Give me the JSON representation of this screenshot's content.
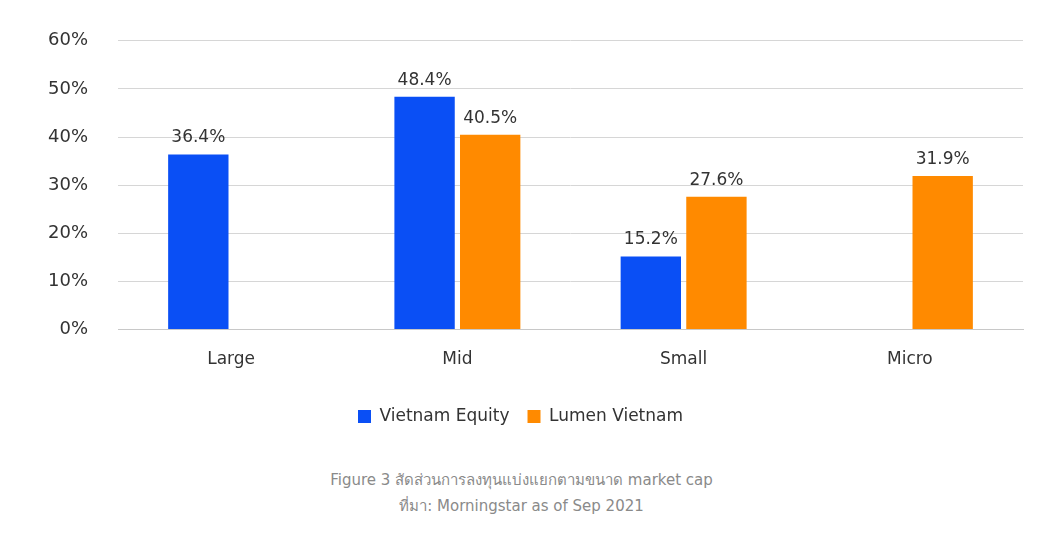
{
  "chart_data": {
    "type": "bar",
    "title": "Figure 3 สัดส่วนการลงทุนแบ่งแยกตามขนาด market cap",
    "subtitle": "ที่มา: Morningstar as of Sep 2021",
    "categories": [
      "Large",
      "Mid",
      "Small",
      "Micro"
    ],
    "series": [
      {
        "name": "Vietnam Equity",
        "color": "#0a4ff5",
        "values": [
          36.4,
          48.4,
          15.2,
          null
        ],
        "value_labels": [
          "36.4%",
          "48.4%",
          "15.2%",
          null
        ]
      },
      {
        "name": "Lumen Vietnam",
        "color": "#ff8a00",
        "values": [
          null,
          40.5,
          27.6,
          31.9
        ],
        "value_labels": [
          null,
          "40.5%",
          "27.6%",
          "31.9%"
        ]
      }
    ],
    "ylim": [
      0,
      60
    ],
    "yticks": [
      {
        "value": 0,
        "label": "0%"
      },
      {
        "value": 10,
        "label": "10%"
      },
      {
        "value": 20,
        "label": "20%"
      },
      {
        "value": 30,
        "label": "30%"
      },
      {
        "value": 40,
        "label": "40%"
      },
      {
        "value": 50,
        "label": "50%"
      },
      {
        "value": 60,
        "label": "60%"
      }
    ],
    "grid": true,
    "legend": "bottom",
    "data_labels": true
  }
}
